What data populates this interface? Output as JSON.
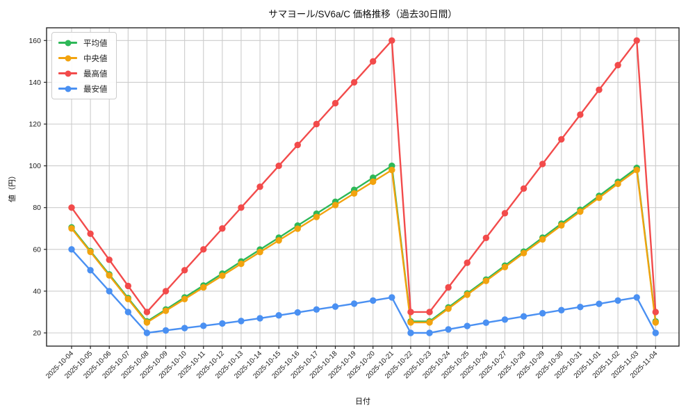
{
  "chart_data": {
    "type": "line",
    "title": "サマヨール/SV6a/C 価格推移（過去30日間）",
    "xlabel": "日付",
    "ylabel": "値（円）",
    "x": [
      "2025-10-04",
      "2025-10-05",
      "2025-10-06",
      "2025-10-07",
      "2025-10-08",
      "2025-10-09",
      "2025-10-10",
      "2025-10-11",
      "2025-10-12",
      "2025-10-13",
      "2025-10-14",
      "2025-10-15",
      "2025-10-16",
      "2025-10-17",
      "2025-10-18",
      "2025-10-19",
      "2025-10-20",
      "2025-10-21",
      "2025-10-22",
      "2025-10-23",
      "2025-10-24",
      "2025-10-25",
      "2025-10-26",
      "2025-10-27",
      "2025-10-28",
      "2025-10-29",
      "2025-10-30",
      "2025-10-31",
      "2025-11-01",
      "2025-11-02",
      "2025-11-03",
      "2025-11-04"
    ],
    "series": [
      {
        "name": "平均値",
        "color": "#2eb858",
        "values": [
          70.5,
          59.2,
          48.0,
          36.7,
          25.5,
          31.2,
          37.0,
          42.7,
          48.4,
          54.2,
          59.9,
          65.6,
          71.4,
          77.1,
          82.8,
          88.5,
          94.3,
          100.0,
          25.5,
          25.5,
          32.2,
          38.9,
          45.5,
          52.2,
          58.9,
          65.6,
          72.3,
          78.9,
          85.6,
          92.3,
          99.0,
          25.5
        ]
      },
      {
        "name": "中央値",
        "color": "#f2a30f",
        "values": [
          70,
          58.8,
          47.5,
          36.2,
          25,
          30.6,
          36.2,
          41.8,
          47.4,
          53.1,
          58.7,
          64.3,
          69.9,
          75.5,
          81.2,
          86.8,
          92.4,
          98,
          25,
          25,
          31.6,
          38.3,
          44.9,
          51.5,
          58.2,
          64.8,
          71.5,
          78.1,
          84.7,
          91.4,
          98,
          25
        ]
      },
      {
        "name": "最高値",
        "color": "#f24b4b",
        "values": [
          80,
          67.5,
          55,
          42.5,
          30,
          40,
          50,
          60,
          70,
          80,
          90,
          100,
          110,
          120,
          130,
          140,
          150,
          160,
          30,
          30,
          41.8,
          53.6,
          65.5,
          77.3,
          89.1,
          100.9,
          112.7,
          124.5,
          136.4,
          148.2,
          160,
          30
        ]
      },
      {
        "name": "最安値",
        "color": "#4a90f2",
        "values": [
          60,
          50,
          40,
          30,
          20,
          21.2,
          22.3,
          23.4,
          24.5,
          25.7,
          27.0,
          28.4,
          29.8,
          31.2,
          32.6,
          34.0,
          35.5,
          37,
          20,
          20,
          21.7,
          23.3,
          24.9,
          26.4,
          27.9,
          29.4,
          30.9,
          32.4,
          33.9,
          35.5,
          37,
          20
        ]
      }
    ],
    "yticks": [
      20,
      40,
      60,
      80,
      100,
      120,
      140,
      160
    ],
    "ylim": [
      13.7,
      166.1
    ],
    "grid": true,
    "legend_position": "upper-left",
    "marker": "circle",
    "x_tick_rotation": 45
  },
  "colors": {
    "background": "#ffffff",
    "grid": "#cccccc",
    "frame": "#262626",
    "tick_text": "#1a1a1a",
    "legend_border": "#cccccc"
  }
}
